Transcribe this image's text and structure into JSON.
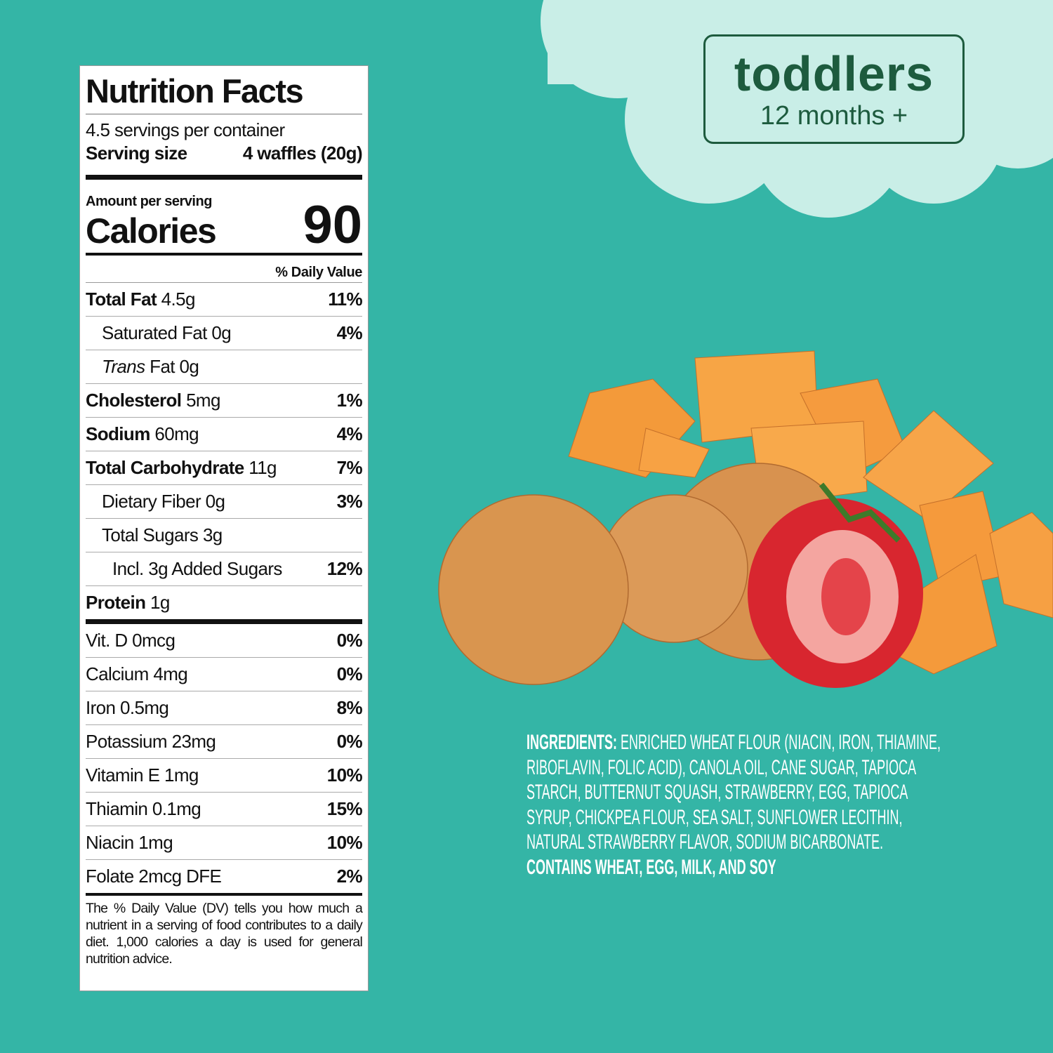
{
  "badge": {
    "title": "toddlers",
    "subtitle": "12 months +"
  },
  "nutrition": {
    "title": "Nutrition Facts",
    "servings": "4.5 servings per container",
    "serving_size_label": "Serving size",
    "serving_size": "4 waffles (20g)",
    "amount_per_serving": "Amount per serving",
    "calories_label": "Calories",
    "calories": "90",
    "dv_header": "% Daily Value",
    "rows": [
      {
        "label": "Total Fat",
        "amount": "4.5g",
        "dv": "11%"
      },
      {
        "amount": "Saturated Fat 0g",
        "dv": "4%"
      },
      {
        "label": "Trans",
        "amount": "Fat 0g"
      },
      {
        "label": "Cholesterol",
        "amount": "5mg",
        "dv": "1%"
      },
      {
        "label": "Sodium",
        "amount": "60mg",
        "dv": "4%"
      },
      {
        "label": "Total Carbohydrate",
        "amount": "11g",
        "dv": "7%"
      },
      {
        "amount": "Dietary Fiber 0g",
        "dv": "3%"
      },
      {
        "amount": "Total Sugars 3g"
      },
      {
        "amount": "Incl. 3g Added Sugars",
        "dv": "12%"
      },
      {
        "label": "Protein",
        "amount": "1g"
      }
    ],
    "vitamins": [
      {
        "amount": "Vit. D 0mcg",
        "dv": "0%"
      },
      {
        "amount": "Calcium 4mg",
        "dv": "0%"
      },
      {
        "amount": "Iron 0.5mg",
        "dv": "8%"
      },
      {
        "amount": "Potassium 23mg",
        "dv": "0%"
      },
      {
        "amount": "Vitamin E 1mg",
        "dv": "10%"
      },
      {
        "amount": "Thiamin 0.1mg",
        "dv": "15%"
      },
      {
        "amount": "Niacin 1mg",
        "dv": "10%"
      },
      {
        "amount": "Folate 2mcg DFE",
        "dv": "2%"
      }
    ],
    "footnote": "The % Daily Value (DV) tells you how much a nutrient in a serving of food contributes to a daily diet. 1,000 calories a day is used for general nutrition advice."
  },
  "ingredients": {
    "label": "INGREDIENTS:",
    "text": "ENRICHED WHEAT FLOUR (NIACIN, IRON, THIAMINE, RIBOFLAVIN, FOLIC ACID), CANOLA OIL, CANE SUGAR, TAPIOCA STARCH, BUTTERNUT SQUASH, STRAWBERRY, EGG, TAPIOCA SYRUP, CHICKPEA FLOUR, SEA SALT, SUNFLOWER LECITHIN, NATURAL STRAWBERRY FLAVOR, SODIUM BICARBONATE.",
    "allergens": "CONTAINS WHEAT, EGG, MILK, AND SOY"
  }
}
